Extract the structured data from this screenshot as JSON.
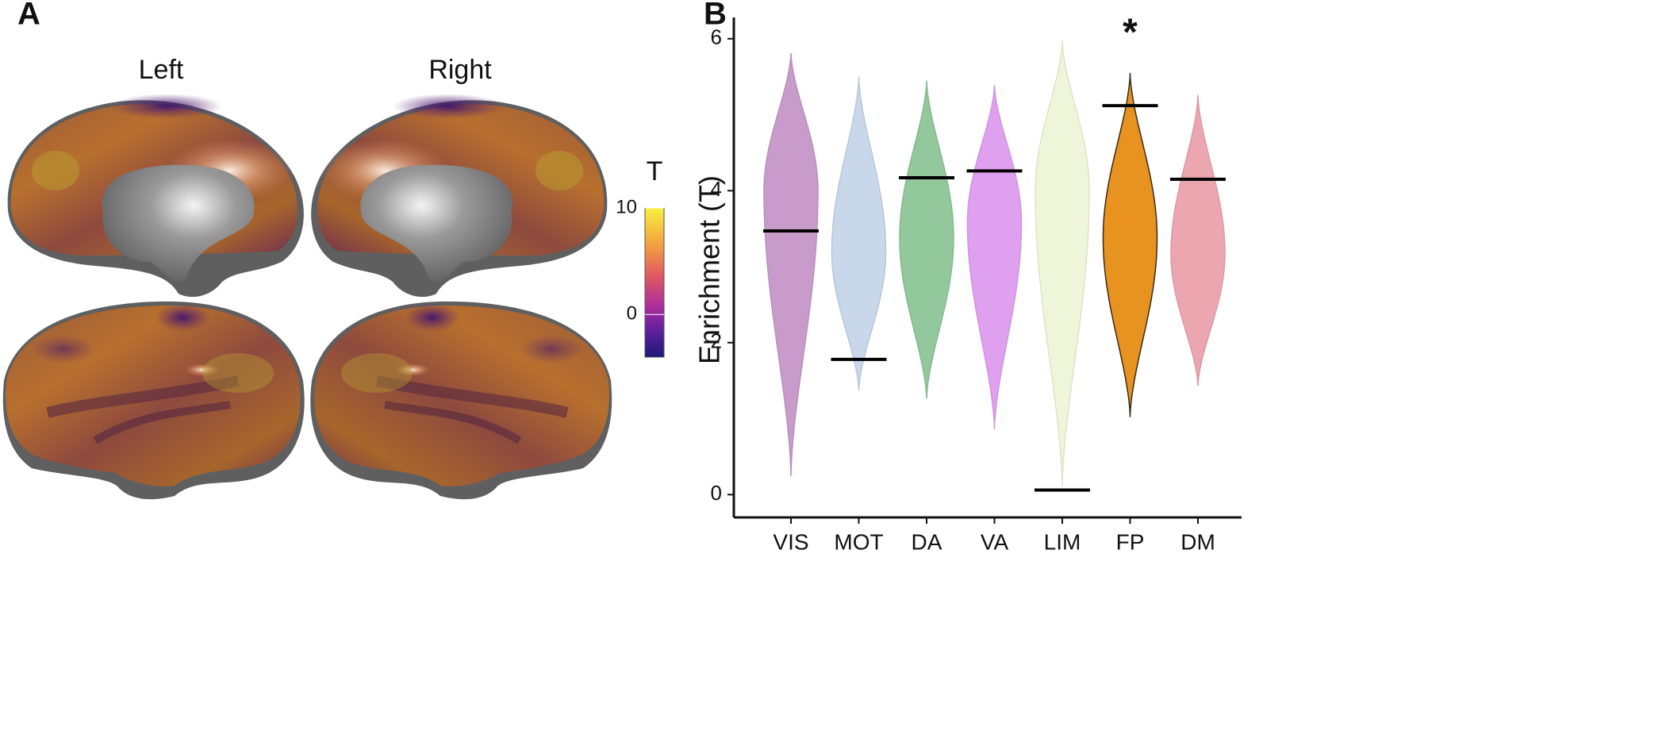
{
  "panel_a": {
    "label": "A",
    "hemispheres": [
      "Left",
      "Right"
    ],
    "colorbar": {
      "title": "T",
      "lim": [
        -4,
        10
      ],
      "ticks": [
        0,
        10
      ]
    }
  },
  "chart_data": {
    "type": "violin",
    "panel_label": "B",
    "ylabel": "Enrichment (T)",
    "categories": [
      "VIS",
      "MOT",
      "DA",
      "VA",
      "LIM",
      "FP",
      "DM"
    ],
    "colors": [
      "#c99bcb",
      "#c8d8ea",
      "#92c89c",
      "#dfa0f0",
      "#eef5d9",
      "#e8921f",
      "#eca6b0"
    ],
    "edges": [
      "#b890ba",
      "#b7c7d8",
      "#84b88e",
      "#cf92e0",
      "#dde5c6",
      "#3a2a1a",
      "#dc98a2"
    ],
    "min": [
      0.24,
      1.37,
      1.26,
      0.86,
      0.11,
      1.02,
      1.43
    ],
    "peak": [
      4.0,
      3.2,
      3.38,
      3.58,
      4.0,
      3.38,
      3.17
    ],
    "max": [
      5.81,
      5.5,
      5.45,
      5.39,
      5.97,
      5.55,
      5.26
    ],
    "values": [
      3.47,
      1.78,
      4.17,
      4.26,
      0.06,
      5.12,
      4.15
    ],
    "annotations": [
      {
        "category": "FP",
        "text": "*"
      }
    ],
    "ylim": [
      -0.3,
      6.28
    ],
    "yticks": [
      0,
      2,
      4,
      6
    ]
  }
}
